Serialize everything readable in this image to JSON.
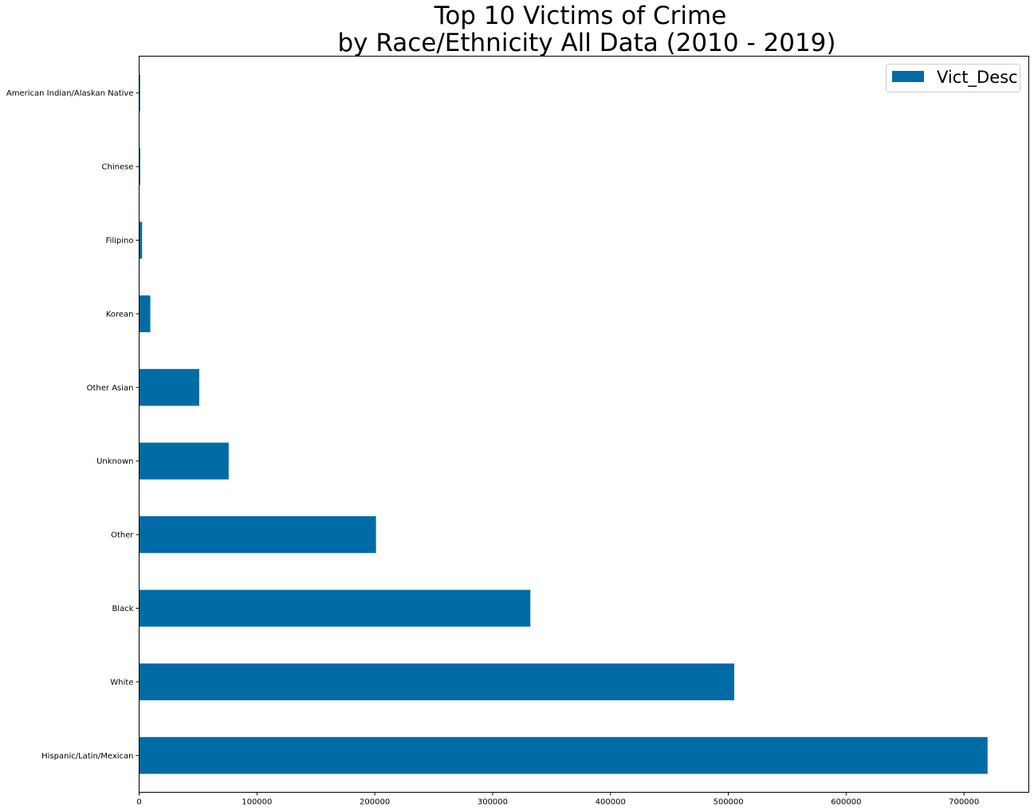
{
  "chart_data": {
    "type": "bar",
    "orientation": "horizontal",
    "title_line1": "Top 10 Victims of Crime",
    "title_line2": "by Race/Ethnicity All Data (2010 - 2019)",
    "categories": [
      "Hispanic/Latin/Mexican",
      "White",
      "Black",
      "Other",
      "Unknown",
      "Other Asian",
      "Korean",
      "Filipino",
      "Chinese",
      "American Indian/Alaskan Native"
    ],
    "series": [
      {
        "name": "Vict_Desc",
        "values": [
          720000,
          505000,
          332000,
          201000,
          76000,
          51000,
          9500,
          2500,
          1000,
          900
        ]
      }
    ],
    "xlim": [
      0,
      755000
    ],
    "xticks": [
      0,
      100000,
      200000,
      300000,
      400000,
      500000,
      600000,
      700000
    ],
    "xlabel": "",
    "ylabel": "",
    "grid": false,
    "legend_position": "upper-right",
    "bar_color": "#006ba4"
  }
}
